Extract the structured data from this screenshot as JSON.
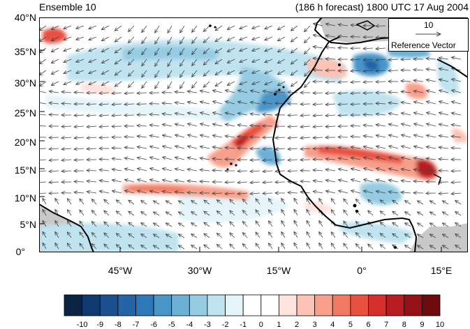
{
  "title_left": "Ensemble 10",
  "title_right": "(186 h forecast) 1800 UTC 17 Aug 2004",
  "y_ticks": [
    "40°N",
    "35°N",
    "30°N",
    "25°N",
    "20°N",
    "15°N",
    "10°N",
    "5°N",
    "0°"
  ],
  "x_ticks": [
    "45°W",
    "30°W",
    "15°W",
    "0°",
    "15°E"
  ],
  "reference_vector": {
    "value": "10",
    "label": "Reference Vector"
  },
  "colorbar": {
    "labels": [
      "-10",
      "-9",
      "-8",
      "-7",
      "-6",
      "-5",
      "-4",
      "-3",
      "-2",
      "-1",
      "0",
      "1",
      "2",
      "3",
      "4",
      "5",
      "6",
      "7",
      "8",
      "9",
      "10"
    ],
    "colors": [
      "#0b2444",
      "#0f3a6f",
      "#1b4f8f",
      "#2463a6",
      "#2c78b8",
      "#4a95c8",
      "#6db0d6",
      "#95cce2",
      "#bfe3ef",
      "#e4f4f8",
      "#ffffff",
      "#ffffff",
      "#fde2de",
      "#fbc2b5",
      "#f79f8a",
      "#f27a64",
      "#e8503f",
      "#d52f2c",
      "#b81c20",
      "#951117",
      "#6d0b0f"
    ]
  },
  "colors": {
    "land_gray": "#c8c8c8",
    "arrow": "#444444",
    "coast": "#000000"
  }
}
